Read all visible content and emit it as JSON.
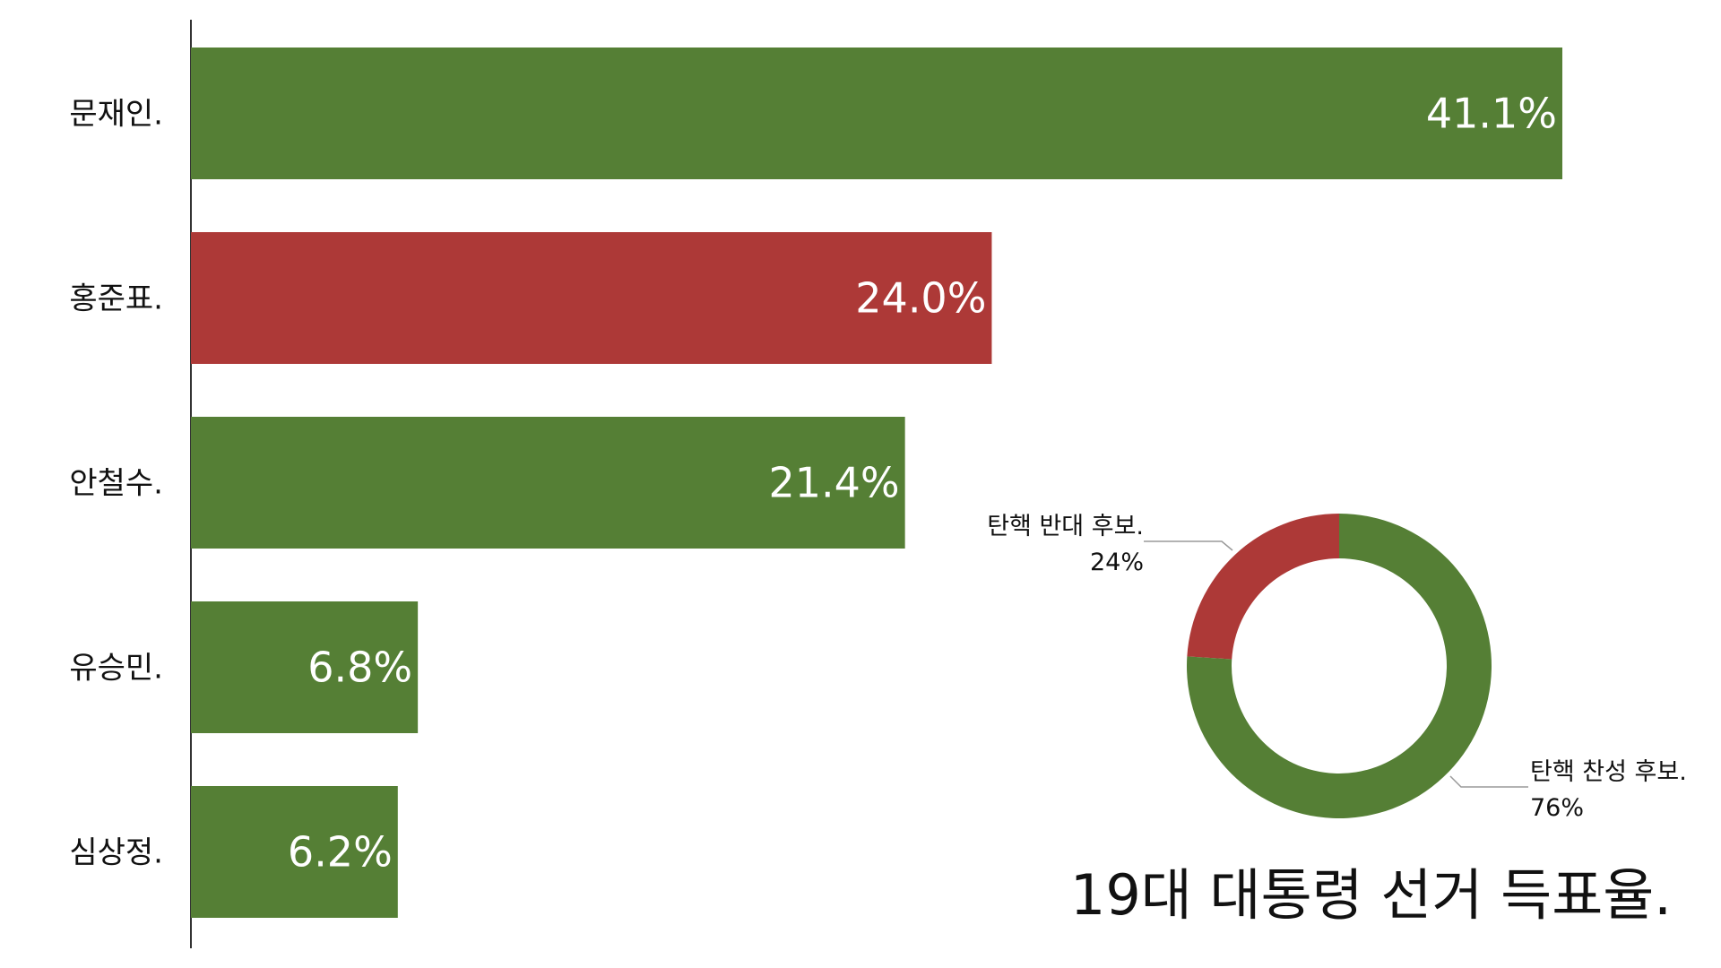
{
  "chart_data": [
    {
      "type": "bar",
      "orientation": "horizontal",
      "title": "19대 대통령 선거 득표율.",
      "categories": [
        "문재인.",
        "홍준표.",
        "안철수.",
        "유승민.",
        "심상정."
      ],
      "values": [
        41.1,
        24.0,
        21.4,
        6.8,
        6.2
      ],
      "value_labels": [
        "41.1%",
        "24.0%",
        "21.4%",
        "6.8%",
        "6.2%"
      ],
      "bar_colors": [
        "#557f35",
        "#ad3937",
        "#557f35",
        "#557f35",
        "#557f35"
      ],
      "xlim": [
        0,
        41.1
      ],
      "grid": false
    },
    {
      "type": "pie",
      "style": "donut",
      "slices": [
        {
          "label": "탄핵 반대 후보.",
          "value": 24,
          "value_label": "24%",
          "color": "#ad3937"
        },
        {
          "label": "탄핵 찬성 후보.",
          "value": 76,
          "value_label": "76%",
          "color": "#557f35"
        }
      ]
    }
  ]
}
